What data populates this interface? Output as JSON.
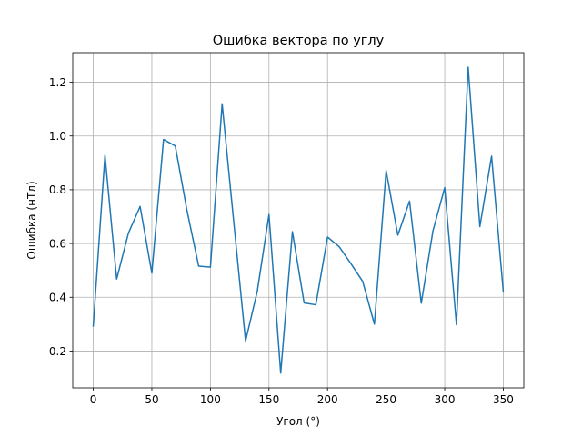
{
  "chart_data": {
    "type": "line",
    "title": "Ошибка вектора по углу",
    "xlabel": "Угол (°)",
    "ylabel": "Ошибка (нТл)",
    "xlim": [
      -17.5,
      367.5
    ],
    "ylim": [
      0.063,
      1.31
    ],
    "xticks": [
      0,
      50,
      100,
      150,
      200,
      250,
      300,
      350
    ],
    "yticks": [
      0.2,
      0.4,
      0.6,
      0.8,
      1.0,
      1.2
    ],
    "ytick_labels": [
      "0.2",
      "0.4",
      "0.6",
      "0.8",
      "1.0",
      "1.2"
    ],
    "grid": true,
    "line_color": "#1f77b4",
    "x": [
      0,
      10,
      20,
      30,
      40,
      50,
      60,
      70,
      80,
      90,
      100,
      110,
      120,
      130,
      140,
      150,
      160,
      170,
      180,
      190,
      200,
      210,
      220,
      230,
      240,
      250,
      260,
      270,
      280,
      290,
      300,
      310,
      320,
      330,
      340,
      350
    ],
    "y": [
      0.293,
      0.928,
      0.468,
      0.638,
      0.738,
      0.49,
      0.987,
      0.963,
      0.723,
      0.516,
      0.512,
      1.12,
      0.677,
      0.237,
      0.422,
      0.708,
      0.118,
      0.644,
      0.379,
      0.372,
      0.624,
      0.588,
      0.525,
      0.459,
      0.3,
      0.871,
      0.631,
      0.758,
      0.378,
      0.648,
      0.808,
      0.298,
      1.256,
      0.663,
      0.925,
      0.42
    ]
  }
}
